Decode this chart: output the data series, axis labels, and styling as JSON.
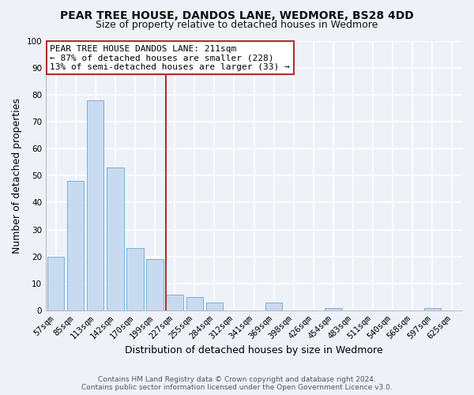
{
  "title": "PEAR TREE HOUSE, DANDOS LANE, WEDMORE, BS28 4DD",
  "subtitle": "Size of property relative to detached houses in Wedmore",
  "xlabel": "Distribution of detached houses by size in Wedmore",
  "ylabel": "Number of detached properties",
  "bar_labels": [
    "57sqm",
    "85sqm",
    "113sqm",
    "142sqm",
    "170sqm",
    "199sqm",
    "227sqm",
    "255sqm",
    "284sqm",
    "312sqm",
    "341sqm",
    "369sqm",
    "398sqm",
    "426sqm",
    "454sqm",
    "483sqm",
    "511sqm",
    "540sqm",
    "568sqm",
    "597sqm",
    "625sqm"
  ],
  "bar_values": [
    20,
    48,
    78,
    53,
    23,
    19,
    6,
    5,
    3,
    0,
    0,
    3,
    0,
    0,
    1,
    0,
    0,
    0,
    0,
    1,
    0
  ],
  "bar_color": "#c8daf0",
  "bar_edge_color": "#7ab0d8",
  "property_line_color": "#b03030",
  "legend_box_color": "#b03030",
  "legend_text_line1": "PEAR TREE HOUSE DANDOS LANE: 211sqm",
  "legend_text_line2": "← 87% of detached houses are smaller (228)",
  "legend_text_line3": "13% of semi-detached houses are larger (33) →",
  "ylim": [
    0,
    100
  ],
  "yticks": [
    0,
    10,
    20,
    30,
    40,
    50,
    60,
    70,
    80,
    90,
    100
  ],
  "footer1": "Contains HM Land Registry data © Crown copyright and database right 2024.",
  "footer2": "Contains public sector information licensed under the Open Government Licence v3.0.",
  "background_color": "#eef2f8",
  "grid_color": "#ffffff",
  "title_fontsize": 10,
  "subtitle_fontsize": 9,
  "tick_fontsize": 7.5,
  "label_fontsize": 9,
  "legend_fontsize": 8,
  "footer_fontsize": 6.5
}
